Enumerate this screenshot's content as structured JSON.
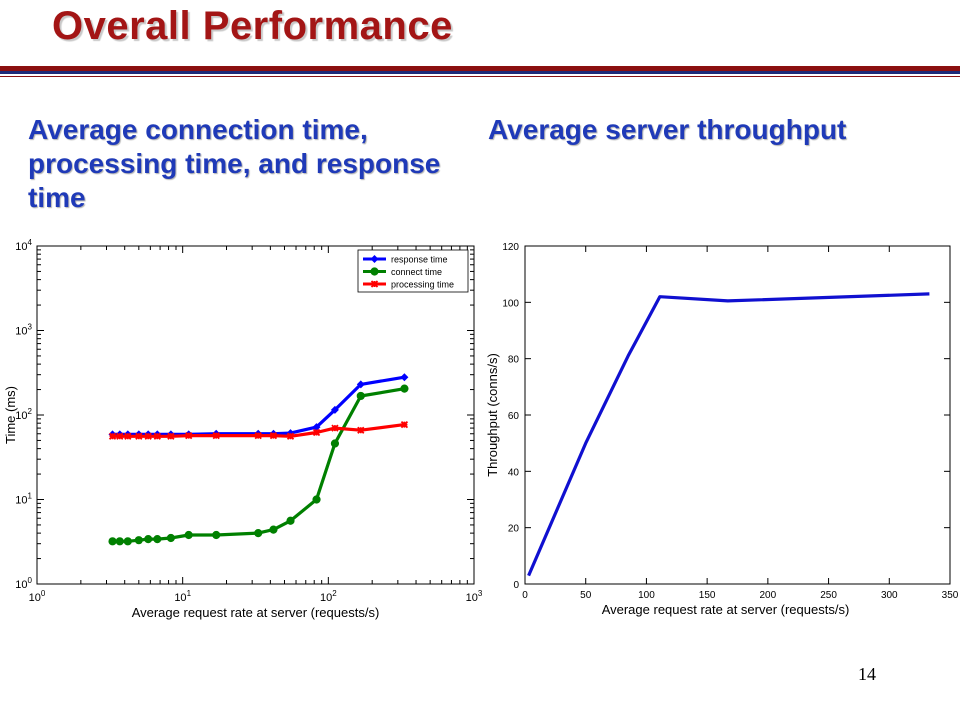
{
  "slide": {
    "title": "Overall Performance",
    "caption_left": "Average connection time, processing time, and response time",
    "caption_right": "Average server throughput",
    "page_number": "14",
    "colors": {
      "title": "#a31515",
      "caption": "#1f3ab8",
      "rule_red": "#8b1010",
      "rule_navy": "#1e2a78"
    }
  },
  "chart_data": [
    {
      "type": "line",
      "xlabel": "Average request rate at server (requests/s)",
      "ylabel": "Time (ms)",
      "xscale": "log",
      "yscale": "log",
      "xlim": [
        1,
        1000
      ],
      "ylim": [
        1,
        10000
      ],
      "xtick_exponents": [
        0,
        1,
        2,
        3
      ],
      "ytick_exponents": [
        0,
        1,
        2,
        3,
        4
      ],
      "grid": false,
      "legend": "top-right",
      "x": [
        3.3,
        3.7,
        4.2,
        5,
        5.8,
        6.7,
        8.3,
        11,
        17,
        33,
        42,
        55,
        83,
        111,
        167,
        333
      ],
      "series": [
        {
          "name": "response time",
          "color": "#0000ff",
          "marker": "diamond",
          "values": [
            59,
            59,
            59,
            59,
            59,
            59,
            59,
            59,
            60,
            60,
            60,
            61,
            72,
            115,
            230,
            280
          ]
        },
        {
          "name": "connect time",
          "color": "#008000",
          "marker": "circle",
          "values": [
            3.2,
            3.2,
            3.2,
            3.3,
            3.4,
            3.4,
            3.5,
            3.8,
            3.8,
            4.0,
            4.4,
            5.6,
            10,
            46,
            168,
            205
          ]
        },
        {
          "name": "processing time",
          "color": "#ff0000",
          "marker": "star",
          "values": [
            56,
            56,
            56,
            56,
            56,
            56,
            56,
            57,
            57,
            57,
            57,
            56,
            62,
            70,
            66,
            77
          ]
        }
      ]
    },
    {
      "type": "line",
      "xlabel": "Average request rate at server (requests/s)",
      "ylabel": "Throughput (conns/s)",
      "xlim": [
        0,
        350
      ],
      "ylim": [
        0,
        120
      ],
      "xticks": [
        0,
        50,
        100,
        150,
        200,
        250,
        300,
        350
      ],
      "yticks": [
        0,
        20,
        40,
        60,
        80,
        100,
        120
      ],
      "grid": false,
      "series": [
        {
          "color": "#1010d0",
          "x": [
            3,
            50,
            85,
            111,
            167,
            333
          ],
          "values": [
            3,
            50,
            81,
            102,
            100.5,
            103
          ]
        }
      ]
    }
  ]
}
